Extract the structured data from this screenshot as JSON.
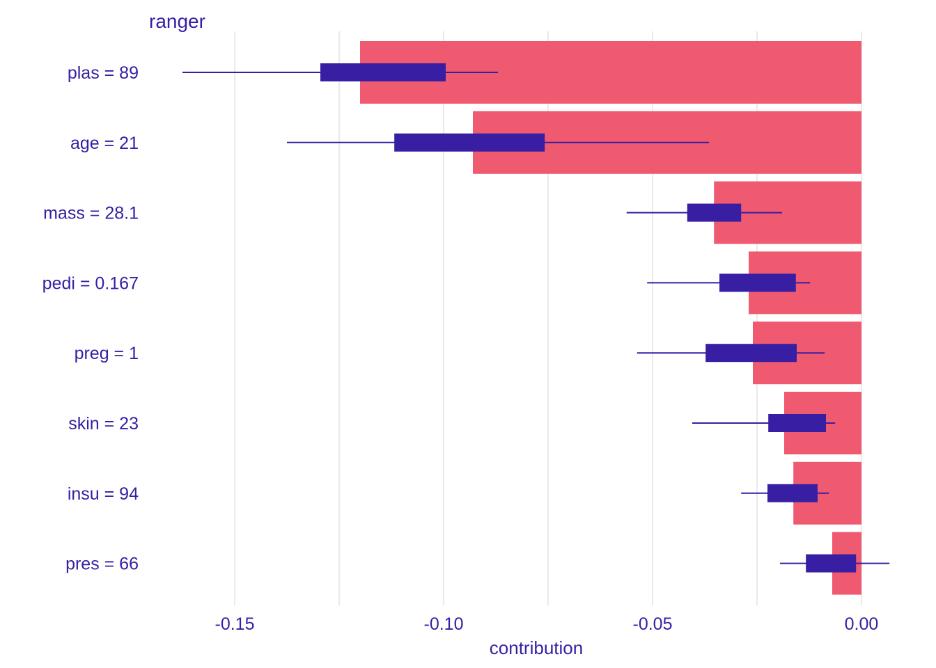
{
  "chart_data": {
    "type": "bar",
    "title": "ranger",
    "xlabel": "contribution",
    "xlim": [
      -0.17,
      0.0
    ],
    "xticks": [
      "-0.15",
      "-0.10",
      "-0.05",
      "0.00"
    ],
    "xtick_values": [
      -0.15,
      -0.1,
      -0.05,
      0.0
    ],
    "grid": true,
    "colors": {
      "bar": "#f05a71",
      "box": "#371ea3",
      "text": "#371ea3",
      "grid": "#e1e1e1"
    },
    "rows": [
      {
        "label": "plas = 89",
        "contribution": -0.12,
        "min": -0.1625,
        "q1": -0.1295,
        "q3": -0.0995,
        "max": -0.087
      },
      {
        "label": "age = 21",
        "contribution": -0.093,
        "min": -0.1375,
        "q1": -0.1118,
        "q3": -0.0758,
        "max": -0.0365
      },
      {
        "label": "mass = 28.1",
        "contribution": -0.0353,
        "min": -0.0562,
        "q1": -0.0417,
        "q3": -0.0288,
        "max": -0.019
      },
      {
        "label": "pedi = 0.167",
        "contribution": -0.027,
        "min": -0.0513,
        "q1": -0.034,
        "q3": -0.0157,
        "max": -0.0123
      },
      {
        "label": "preg = 1",
        "contribution": -0.026,
        "min": -0.0537,
        "q1": -0.0373,
        "q3": -0.0155,
        "max": -0.0088
      },
      {
        "label": "skin = 23",
        "contribution": -0.0185,
        "min": -0.0405,
        "q1": -0.0223,
        "q3": -0.0085,
        "max": -0.0063
      },
      {
        "label": "insu = 94",
        "contribution": -0.0163,
        "min": -0.0288,
        "q1": -0.0225,
        "q3": -0.0105,
        "max": -0.0078
      },
      {
        "label": "pres = 66",
        "contribution": -0.007,
        "min": -0.0195,
        "q1": -0.0133,
        "q3": -0.0013,
        "max": 0.0067
      }
    ]
  }
}
